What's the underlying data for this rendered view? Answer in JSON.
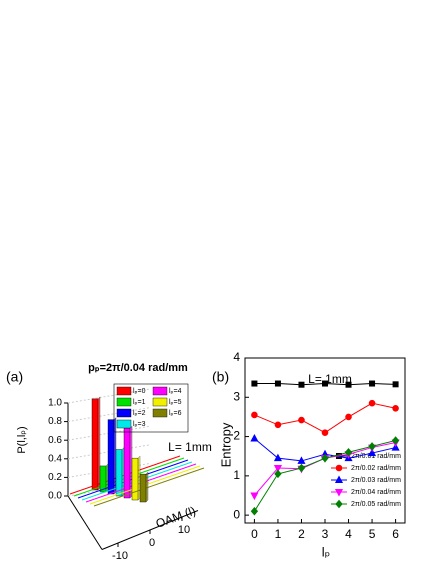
{
  "chart_data": [
    {
      "type": "bar3d",
      "panel_label": "(a)",
      "title": "pₚ=2π/0.04 rad/mm",
      "y_label": "P(l,lₚ)",
      "x_label": "OAM (l)",
      "annotation": "L= 1mm",
      "ylim": [
        0,
        1
      ],
      "yticks": [
        {
          "value": 0,
          "label": "0.0"
        },
        0.2,
        0.4,
        0.6,
        0.8,
        {
          "value": 1,
          "label": "1.0"
        }
      ],
      "xlim": [
        -15,
        15
      ],
      "xticks": [
        -10,
        0,
        10
      ],
      "series": [
        {
          "name": "lₚ=0",
          "color": "#ff0000",
          "values": [
            0.98
          ]
        },
        {
          "name": "lₚ=1",
          "color": "#00e000",
          "values": [
            0.28
          ]
        },
        {
          "name": "lₚ=2",
          "color": "#0000ff",
          "values": [
            0.8
          ]
        },
        {
          "name": "lₚ=3",
          "color": "#00e8e8",
          "values": [
            0.5
          ]
        },
        {
          "name": "lₚ=4",
          "color": "#ff00ff",
          "values": [
            0.75
          ]
        },
        {
          "name": "lₚ=5",
          "color": "#f0f000",
          "values": [
            0.45
          ]
        },
        {
          "name": "lₚ=6",
          "color": "#808000",
          "values": [
            0.3
          ]
        }
      ]
    },
    {
      "type": "line",
      "panel_label": "(b)",
      "x_label": "lₚ",
      "y_label": "Entropy",
      "annotation": "L= 1mm",
      "x": [
        0,
        1,
        2,
        3,
        4,
        5,
        6
      ],
      "xlim": [
        -0.4,
        6.4
      ],
      "xticks": [
        0,
        1,
        2,
        3,
        4,
        5,
        6
      ],
      "ylim": [
        -0.2,
        4
      ],
      "yticks": [
        0,
        1,
        2,
        3,
        4
      ],
      "legend": "lower right",
      "series": [
        {
          "name": "2π/0.01 rad/mm",
          "color": "#000000",
          "marker": "square",
          "values": [
            3.35,
            3.35,
            3.32,
            3.35,
            3.32,
            3.35,
            3.33
          ]
        },
        {
          "name": "2π/0.02 rad/mm",
          "color": "#ff0000",
          "marker": "circle",
          "values": [
            2.55,
            2.3,
            2.42,
            2.1,
            2.5,
            2.85,
            2.72
          ]
        },
        {
          "name": "2π/0.03 rad/mm",
          "color": "#0000ff",
          "marker": "triangle-up",
          "values": [
            1.95,
            1.45,
            1.38,
            1.55,
            1.45,
            1.58,
            1.72
          ]
        },
        {
          "name": "2π/0.04 rad/mm",
          "color": "#ff00ff",
          "marker": "triangle-down",
          "values": [
            0.5,
            1.2,
            1.18,
            1.45,
            1.55,
            1.72,
            1.85
          ]
        },
        {
          "name": "2π/0.05 rad/mm",
          "color": "#008000",
          "marker": "diamond",
          "values": [
            0.1,
            1.05,
            1.2,
            1.45,
            1.6,
            1.75,
            1.9
          ]
        }
      ]
    }
  ]
}
